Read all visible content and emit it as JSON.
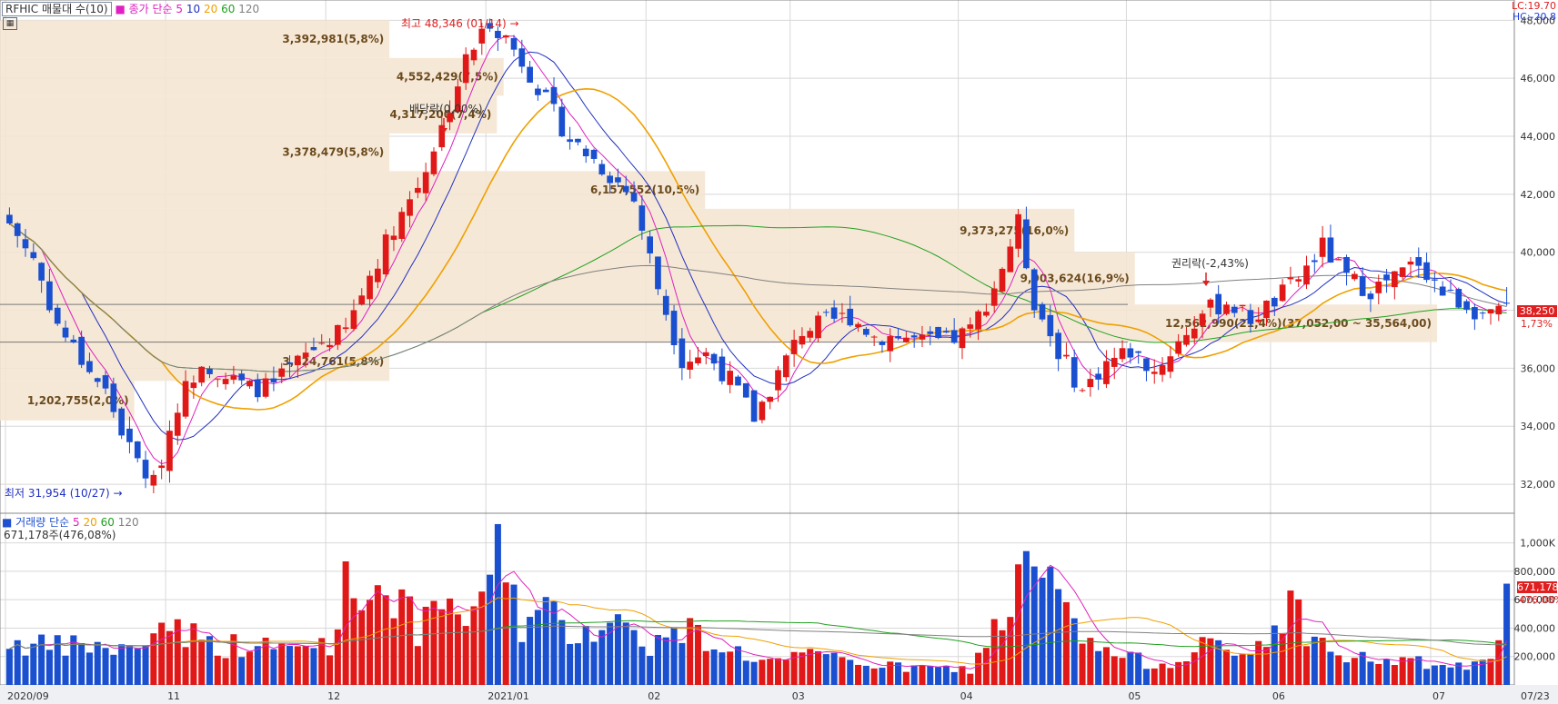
{
  "header": {
    "symbol": "RFHIC 매물대 수(10)",
    "ma_label": "종가 단순",
    "ma_periods": [
      "5",
      "10",
      "20",
      "60",
      "120"
    ],
    "ma_colors": [
      "#e020c0",
      "#2030c0",
      "#f0a000",
      "#20a020",
      "#808080"
    ],
    "corner_lc": "LC:19.70",
    "corner_hc": "HC:-20.8"
  },
  "volume_header": {
    "label": "거래량 단순",
    "periods": [
      "5",
      "20",
      "60",
      "120"
    ],
    "colors": [
      "#e020c0",
      "#f0a000",
      "#20a020",
      "#808080"
    ],
    "value": "671,178주(476,08%)"
  },
  "annotations": {
    "high": "최고 48,346 (01/14)",
    "low": "최저 31,954 (10/27)",
    "dividend": "배당락(0,00%)",
    "rights": "권리락(-2,43%)",
    "last_price": "38,250",
    "last_change": "1,73%",
    "last_volume": "671,178",
    "last_volume_pct": "476,08%"
  },
  "chart_data": {
    "type": "candlestick",
    "price_axis": {
      "min": 31000,
      "max": 48700,
      "ticks": [
        "48,000",
        "46,000",
        "44,000",
        "42,000",
        "40,000",
        "38,000",
        "36,000",
        "34,000",
        "32,000"
      ]
    },
    "volume_axis": {
      "max": 1100000,
      "ticks": [
        "1,000K",
        "800,000",
        "600,000",
        "400,000",
        "200,000"
      ]
    },
    "x_labels": [
      "2020/09",
      "11",
      "12",
      "2021/01",
      "02",
      "03",
      "04",
      "05",
      "06",
      "07",
      "07/23"
    ],
    "volume_profile": [
      {
        "low": 46700,
        "high": 48000,
        "label": "3,392,981(5,8%)"
      },
      {
        "low": 45400,
        "high": 46700,
        "label": "4,552,429(7,5%)"
      },
      {
        "low": 44100,
        "high": 45400,
        "label": "4,317,200(7,4%)"
      },
      {
        "low": 42800,
        "high": 44100,
        "label": "3,378,479(5,8%)"
      },
      {
        "low": 41500,
        "high": 42800,
        "label": "6,157,552(10,5%)"
      },
      {
        "low": 40000,
        "high": 41500,
        "label": "9,373,275(16,0%)"
      },
      {
        "low": 38200,
        "high": 40000,
        "label": "9,903,624(16,9%)"
      },
      {
        "low": 36900,
        "high": 38200,
        "label": "12,562,990(21,4%)(37,052,00 ~ 35,564,00)"
      },
      {
        "low": 35564,
        "high": 36900,
        "label": "3,424,761(5,8%)"
      },
      {
        "low": 34200,
        "high": 35564,
        "label": "1,202,755(2,0%)"
      }
    ],
    "price_path": [
      [
        0,
        41000
      ],
      [
        3,
        39800
      ],
      [
        6,
        37500
      ],
      [
        9,
        36300
      ],
      [
        12,
        35200
      ],
      [
        15,
        33200
      ],
      [
        18,
        32000
      ],
      [
        21,
        34800
      ],
      [
        24,
        36300
      ],
      [
        27,
        35700
      ],
      [
        30,
        35300
      ],
      [
        33,
        35400
      ],
      [
        36,
        36200
      ],
      [
        39,
        36900
      ],
      [
        42,
        37300
      ],
      [
        45,
        39200
      ],
      [
        48,
        40900
      ],
      [
        51,
        42300
      ],
      [
        54,
        44300
      ],
      [
        57,
        46600
      ],
      [
        60,
        48000
      ],
      [
        62,
        47400
      ],
      [
        65,
        46200
      ],
      [
        67,
        45200
      ],
      [
        70,
        43900
      ],
      [
        73,
        43200
      ],
      [
        76,
        42400
      ],
      [
        78,
        41800
      ],
      [
        81,
        38800
      ],
      [
        84,
        36300
      ],
      [
        87,
        36500
      ],
      [
        90,
        35600
      ],
      [
        93,
        34300
      ],
      [
        96,
        35800
      ],
      [
        99,
        37300
      ],
      [
        102,
        37600
      ],
      [
        105,
        37800
      ],
      [
        108,
        37100
      ],
      [
        111,
        37100
      ],
      [
        114,
        36900
      ],
      [
        117,
        36900
      ],
      [
        120,
        37300
      ],
      [
        123,
        38800
      ],
      [
        126,
        41000
      ],
      [
        128,
        38300
      ],
      [
        131,
        36600
      ],
      [
        134,
        35200
      ],
      [
        137,
        36200
      ],
      [
        140,
        36600
      ],
      [
        143,
        35900
      ],
      [
        146,
        36900
      ],
      [
        149,
        37900
      ],
      [
        152,
        38300
      ],
      [
        155,
        37700
      ],
      [
        158,
        38300
      ],
      [
        161,
        39100
      ],
      [
        164,
        40200
      ],
      [
        167,
        39100
      ],
      [
        170,
        38700
      ],
      [
        173,
        39100
      ],
      [
        176,
        39700
      ],
      [
        179,
        38600
      ],
      [
        182,
        38200
      ],
      [
        185,
        37700
      ],
      [
        187,
        38250
      ]
    ],
    "volume_path": [
      [
        0,
        340000
      ],
      [
        5,
        290000
      ],
      [
        10,
        310000
      ],
      [
        15,
        260000
      ],
      [
        18,
        420000
      ],
      [
        20,
        500000
      ],
      [
        25,
        320000
      ],
      [
        30,
        300000
      ],
      [
        35,
        280000
      ],
      [
        40,
        340000
      ],
      [
        42,
        760000
      ],
      [
        45,
        750000
      ],
      [
        48,
        760000
      ],
      [
        51,
        420000
      ],
      [
        54,
        560000
      ],
      [
        55,
        760000
      ],
      [
        57,
        430000
      ],
      [
        58,
        480000
      ],
      [
        60,
        1040000
      ],
      [
        62,
        1040000
      ],
      [
        64,
        460000
      ],
      [
        67,
        560000
      ],
      [
        70,
        420000
      ],
      [
        75,
        500000
      ],
      [
        78,
        430000
      ],
      [
        80,
        320000
      ],
      [
        85,
        420000
      ],
      [
        90,
        280000
      ],
      [
        95,
        180000
      ],
      [
        100,
        220000
      ],
      [
        105,
        200000
      ],
      [
        110,
        140000
      ],
      [
        115,
        130000
      ],
      [
        120,
        120000
      ],
      [
        125,
        650000
      ],
      [
        127,
        860000
      ],
      [
        130,
        820000
      ],
      [
        133,
        420000
      ],
      [
        136,
        280000
      ],
      [
        140,
        200000
      ],
      [
        145,
        160000
      ],
      [
        149,
        380000
      ],
      [
        152,
        220000
      ],
      [
        155,
        240000
      ],
      [
        160,
        620000
      ],
      [
        163,
        360000
      ],
      [
        166,
        220000
      ],
      [
        170,
        200000
      ],
      [
        175,
        180000
      ],
      [
        180,
        140000
      ],
      [
        185,
        160000
      ],
      [
        187,
        670000
      ]
    ]
  }
}
